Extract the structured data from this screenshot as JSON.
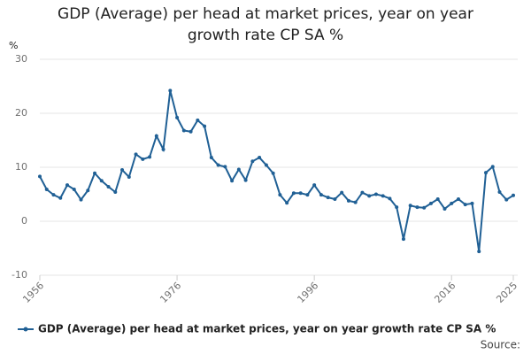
{
  "chart_data": {
    "type": "line",
    "title": "GDP (Average) per head at market prices, year on year growth rate CP SA %",
    "y_label": "%",
    "source_label": "Source:",
    "x": [
      1956,
      1957,
      1958,
      1959,
      1960,
      1961,
      1962,
      1963,
      1964,
      1965,
      1966,
      1967,
      1968,
      1969,
      1970,
      1971,
      1972,
      1973,
      1974,
      1975,
      1976,
      1977,
      1978,
      1979,
      1980,
      1981,
      1982,
      1983,
      1984,
      1985,
      1986,
      1987,
      1988,
      1989,
      1990,
      1991,
      1992,
      1993,
      1994,
      1995,
      1996,
      1997,
      1998,
      1999,
      2000,
      2001,
      2002,
      2003,
      2004,
      2005,
      2006,
      2007,
      2008,
      2009,
      2010,
      2011,
      2012,
      2013,
      2014,
      2015,
      2016,
      2017,
      2018,
      2019,
      2020,
      2021,
      2022,
      2023,
      2024,
      2025
    ],
    "series": [
      {
        "name": "GDP (Average) per head at market prices, year on year growth rate CP SA %",
        "color": "#206095",
        "values": [
          8.3,
          5.9,
          4.9,
          4.3,
          6.7,
          5.9,
          4.0,
          5.7,
          8.9,
          7.5,
          6.4,
          5.4,
          9.5,
          8.2,
          12.4,
          11.5,
          11.9,
          15.8,
          13.3,
          24.2,
          19.2,
          16.8,
          16.6,
          18.7,
          17.6,
          11.8,
          10.4,
          10.1,
          7.5,
          9.6,
          7.6,
          11.1,
          11.8,
          10.4,
          8.9,
          4.9,
          3.4,
          5.2,
          5.2,
          4.9,
          6.7,
          4.9,
          4.4,
          4.1,
          5.3,
          3.8,
          3.5,
          5.3,
          4.7,
          5.0,
          4.7,
          4.2,
          2.6,
          -3.3,
          2.9,
          2.6,
          2.5,
          3.3,
          4.1,
          2.3,
          3.3,
          4.1,
          3.1,
          3.3,
          -5.6,
          9.0,
          10.1,
          5.4,
          4.0,
          4.8
        ]
      }
    ],
    "xlim": [
      1956,
      2025
    ],
    "xticks": [
      1956,
      1976,
      1996,
      2016,
      2025
    ],
    "ylim": [
      -10,
      30
    ],
    "yticks": [
      -10,
      0,
      10,
      20,
      30
    ],
    "grid": true
  }
}
